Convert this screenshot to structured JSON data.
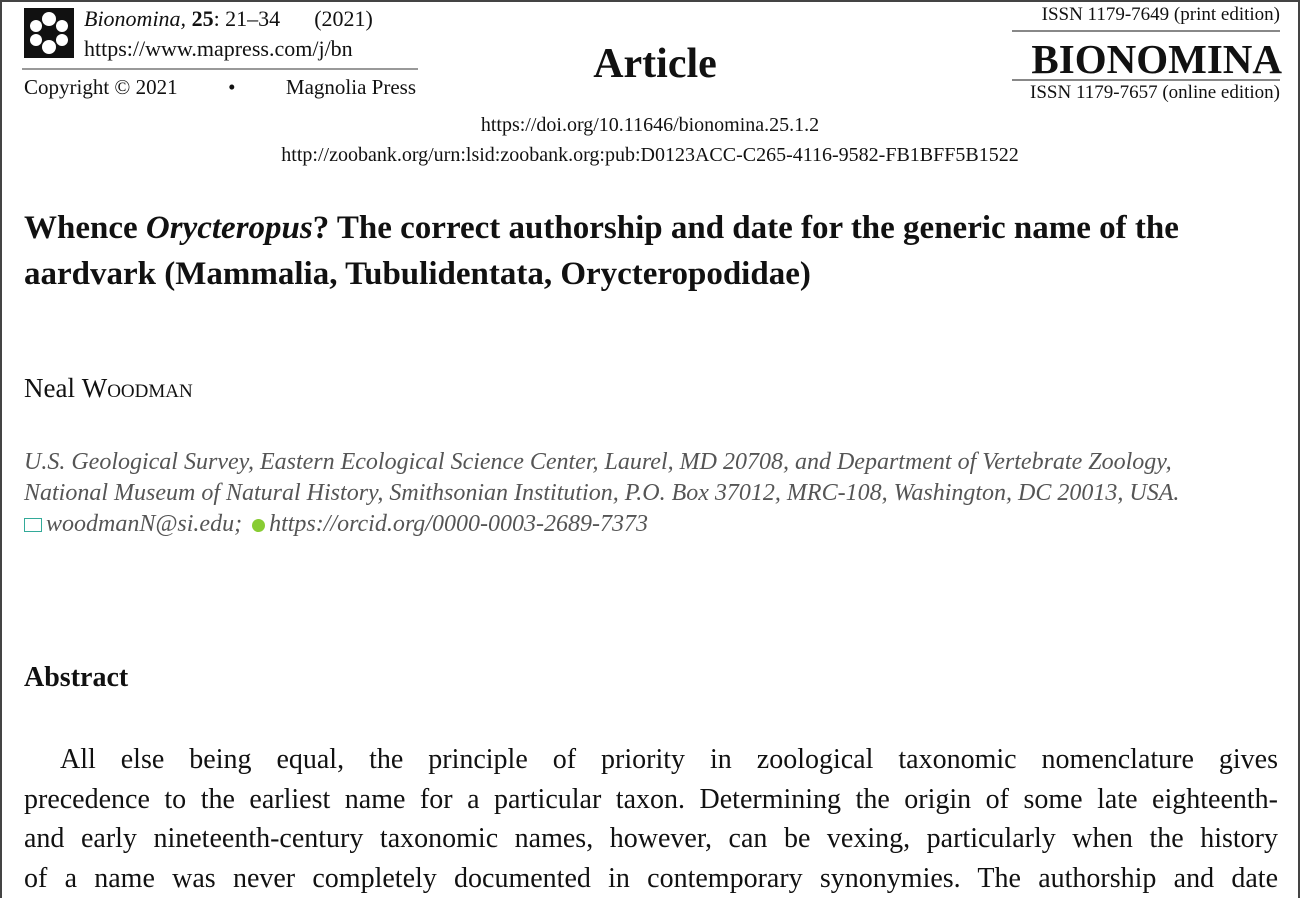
{
  "header": {
    "journal": "Bionomina,",
    "volume": "25",
    "pages": ": 21–34",
    "year": "(2021)",
    "url": "https://www.mapress.com/j/bn",
    "copyright": "Copyright © 2021",
    "bullet": "•",
    "publisher": "Magnolia Press",
    "article_type": "Article",
    "issn_print": "ISSN 1179-7649 (print edition)",
    "brand": "BIONOMINA",
    "issn_online": "ISSN 1179-7657 (online edition)"
  },
  "doi": "https://doi.org/10.11646/bionomina.25.1.2",
  "zoobank": "http://zoobank.org/urn:lsid:zoobank.org:pub:D0123ACC-C265-4116-9582-FB1BFF5B1522",
  "title": {
    "part1": "Whence ",
    "genus": "Orycteropus",
    "part2": "? The correct authorship and date for the generic name of the aardvark (Mammalia, Tubulidentata, Orycteropodidae)"
  },
  "author": {
    "first": "Neal ",
    "last": "Woodman"
  },
  "affiliation": {
    "line1": "U.S. Geological Survey, Eastern Ecological Science Center, Laurel, MD 20708, and Department of Vertebrate Zoology,",
    "line2": "National Museum of Natural History, Smithsonian Institution, P.O. Box 37012, MRC-108, Washington, DC 20013, USA.",
    "email": "woodmanN@si.edu;",
    "orcid": "https://orcid.org/0000-0003-2689-7373",
    "email_icon": "mail-icon",
    "orcid_icon": "orcid-icon"
  },
  "abstract": {
    "heading": "Abstract",
    "lines": [
      "All else being equal, the principle of priority in zoological taxonomic nomenclature gives",
      "precedence to the earliest name for a particular taxon. Determining the origin of some late eighteenth-",
      "and early nineteenth-century taxonomic names, however, can be vexing, particularly when the history",
      "of a name was never completely documented in contemporary synonymies. The authorship and date"
    ]
  }
}
